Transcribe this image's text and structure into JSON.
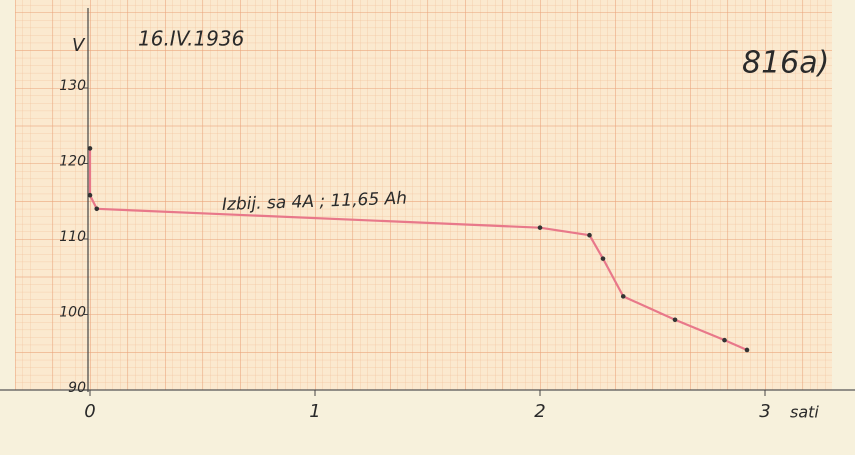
{
  "chart_data": {
    "type": "line",
    "title": "16.IV.1936",
    "sheet_number": "816a)",
    "y_label": "V",
    "x_label": "sati",
    "annotation": "Izbij. sa 4A ; 11,65 Ah",
    "series": [
      {
        "color": "#e8788a",
        "x": [
          0,
          0,
          0.03,
          2.0,
          2.22,
          2.28,
          2.37,
          2.6,
          2.82,
          2.92
        ],
        "values": [
          122,
          115.8,
          114,
          111.5,
          110.5,
          107.4,
          102.4,
          99.3,
          96.6,
          95.3
        ]
      }
    ],
    "xlim": [
      0,
      3.3
    ],
    "ylim": [
      90,
      140
    ],
    "xticks": [
      0,
      1,
      2,
      3
    ],
    "yticks": [
      90,
      100,
      110,
      120,
      130
    ]
  }
}
